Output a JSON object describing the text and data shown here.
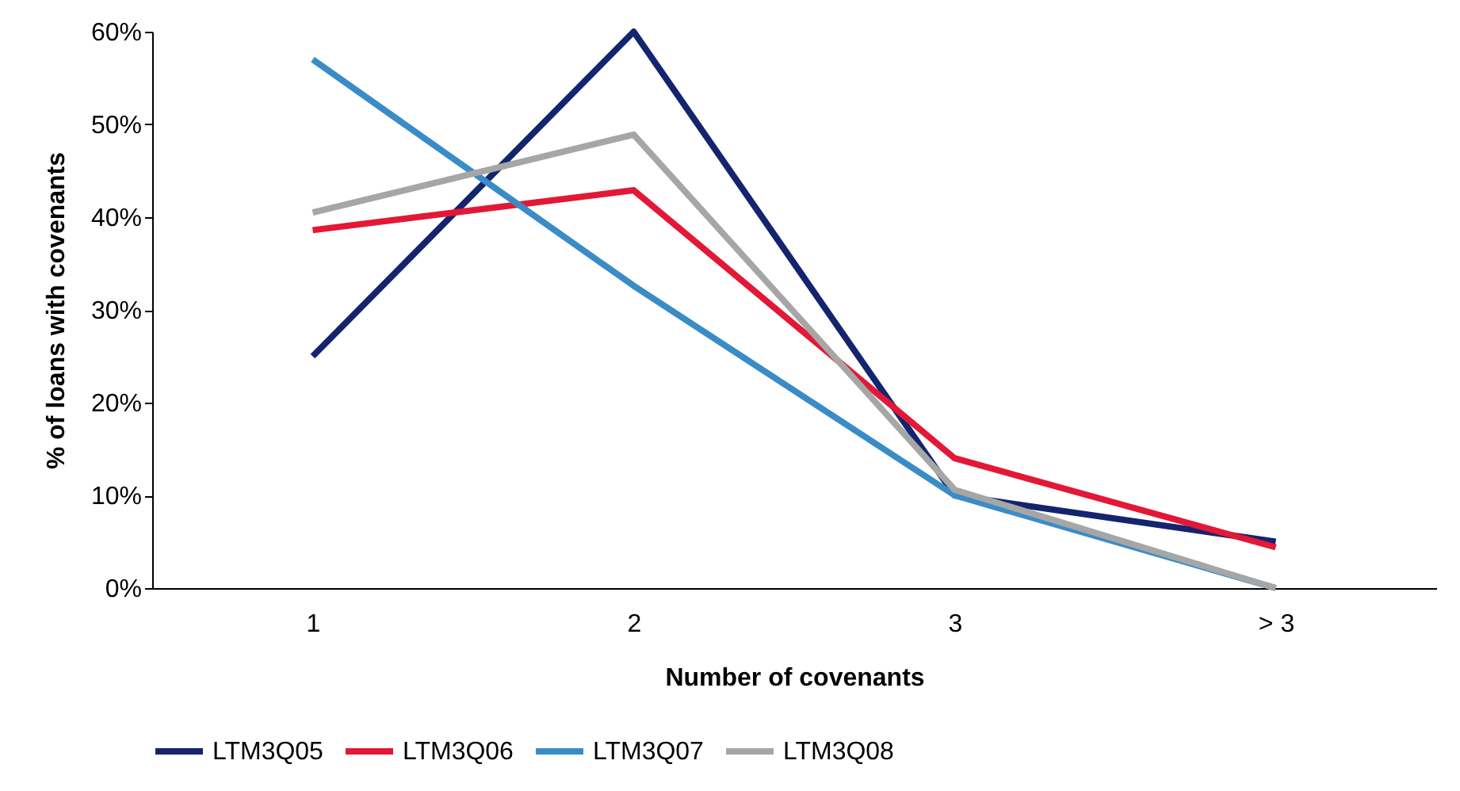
{
  "chart_data": {
    "type": "line",
    "xlabel": "Number of covenants",
    "ylabel": "% of loans with  covenants",
    "categories": [
      "1",
      "2",
      "3",
      "> 3"
    ],
    "series": [
      {
        "name": "LTM3Q05",
        "color": "#14246e",
        "values": [
          25,
          60,
          10,
          5
        ]
      },
      {
        "name": "LTM3Q06",
        "color": "#e31837",
        "values": [
          38.6,
          42.9,
          14,
          4.4
        ]
      },
      {
        "name": "LTM3Q07",
        "color": "#3a8cc6",
        "values": [
          57,
          32.6,
          10,
          0
        ]
      },
      {
        "name": "LTM3Q08",
        "color": "#a6a6a6",
        "values": [
          40.5,
          48.9,
          10.6,
          0
        ]
      }
    ],
    "ylim": [
      0,
      60
    ],
    "yticks": [
      {
        "value": 0,
        "label": "0%"
      },
      {
        "value": 10,
        "label": "10%"
      },
      {
        "value": 20,
        "label": "20%"
      },
      {
        "value": 30,
        "label": "30%"
      },
      {
        "value": 40,
        "label": "40%"
      },
      {
        "value": 50,
        "label": "50%"
      },
      {
        "value": 60,
        "label": "60%"
      }
    ],
    "grid": false,
    "legend": "bottom",
    "marker": "none",
    "line_style": "solid"
  }
}
